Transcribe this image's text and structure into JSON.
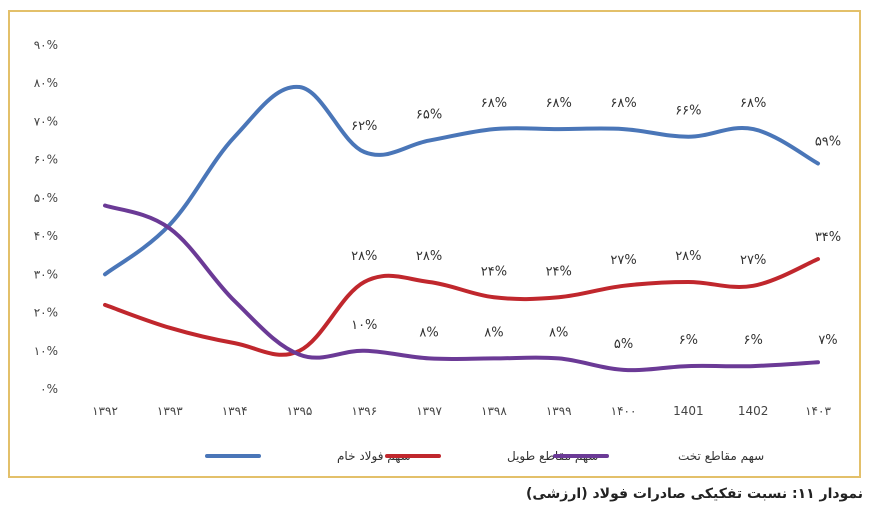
{
  "caption": "نمودار ۱۱: نسبت تفکیکی صادرات فولاد (ارزشی)",
  "chart_data": {
    "type": "line",
    "categories": [
      "۱۳۹۲",
      "۱۳۹۳",
      "۱۳۹۴",
      "۱۳۹۵",
      "۱۳۹۶",
      "۱۳۹۷",
      "۱۳۹۸",
      "۱۳۹۹",
      "۱۴۰۰",
      "1401",
      "1402",
      "۱۴۰۳"
    ],
    "ylim": [
      0,
      90
    ],
    "yticks": [
      0,
      10,
      20,
      30,
      40,
      50,
      60,
      70,
      80,
      90
    ],
    "ytick_labels": [
      "۰%",
      "۱۰%",
      "۲۰%",
      "۳۰%",
      "۴۰%",
      "۵۰%",
      "۶۰%",
      "۷۰%",
      "۸۰%",
      "۹۰%"
    ],
    "series": [
      {
        "name": "سهم فولاد خام",
        "color": "#4a76b8",
        "values": [
          30,
          43,
          66,
          79,
          62,
          65,
          68,
          68,
          68,
          66,
          68,
          59
        ],
        "labels": [
          null,
          null,
          null,
          null,
          "۶۲%",
          "۶۵%",
          "۶۸%",
          "۶۸%",
          "۶۸%",
          "۶۶%",
          "۶۸%",
          "۵۹%"
        ]
      },
      {
        "name": "سهم مقاطع طویل",
        "color": "#c0272d",
        "values": [
          22,
          16,
          12,
          10,
          28,
          28,
          24,
          24,
          27,
          28,
          27,
          34
        ],
        "labels": [
          null,
          null,
          null,
          null,
          "۲۸%",
          "۲۸%",
          "۲۴%",
          "۲۴%",
          "۲۷%",
          "۲۸%",
          "۲۷%",
          "۳۴%"
        ]
      },
      {
        "name": "سهم مقاطع تخت",
        "color": "#6b3a96",
        "values": [
          48,
          42,
          23,
          9,
          10,
          8,
          8,
          8,
          5,
          6,
          6,
          7
        ],
        "labels": [
          null,
          null,
          null,
          null,
          "۱۰%",
          "۸%",
          "۸%",
          "۸%",
          "۵%",
          "۶%",
          "۶%",
          "۷%"
        ]
      }
    ],
    "legend_position": "bottom",
    "grid": false
  }
}
